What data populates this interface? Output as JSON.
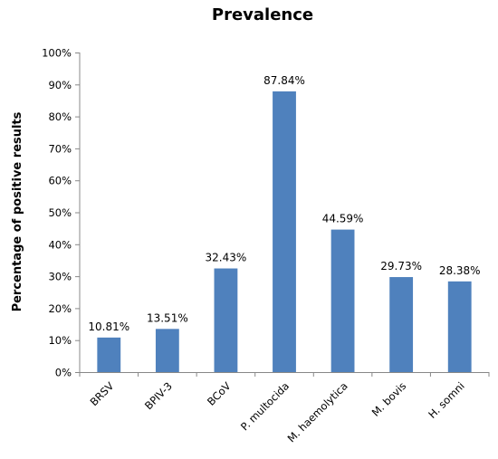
{
  "chart_data": {
    "type": "bar",
    "title": "Prevalence",
    "ylabel": "Percentage of positive results",
    "xlabel": "",
    "categories": [
      "BRSV",
      "BPIV-3",
      "BCoV",
      "P. multocida",
      "M. haemolytica",
      "M. bovis",
      "H. somni"
    ],
    "values": [
      10.81,
      13.51,
      32.43,
      87.84,
      44.59,
      29.73,
      28.38
    ],
    "data_labels": [
      "10.81%",
      "13.51%",
      "32.43%",
      "87.84%",
      "44.59%",
      "29.73%",
      "28.38%"
    ],
    "ylim": [
      0,
      100
    ],
    "yticks": [
      0,
      10,
      20,
      30,
      40,
      50,
      60,
      70,
      80,
      90,
      100
    ],
    "ytick_labels": [
      "0%",
      "10%",
      "20%",
      "30%",
      "40%",
      "50%",
      "60%",
      "70%",
      "80%",
      "90%",
      "100%"
    ],
    "grid": false,
    "legend": "none",
    "bar_color": "#4F81BD"
  }
}
